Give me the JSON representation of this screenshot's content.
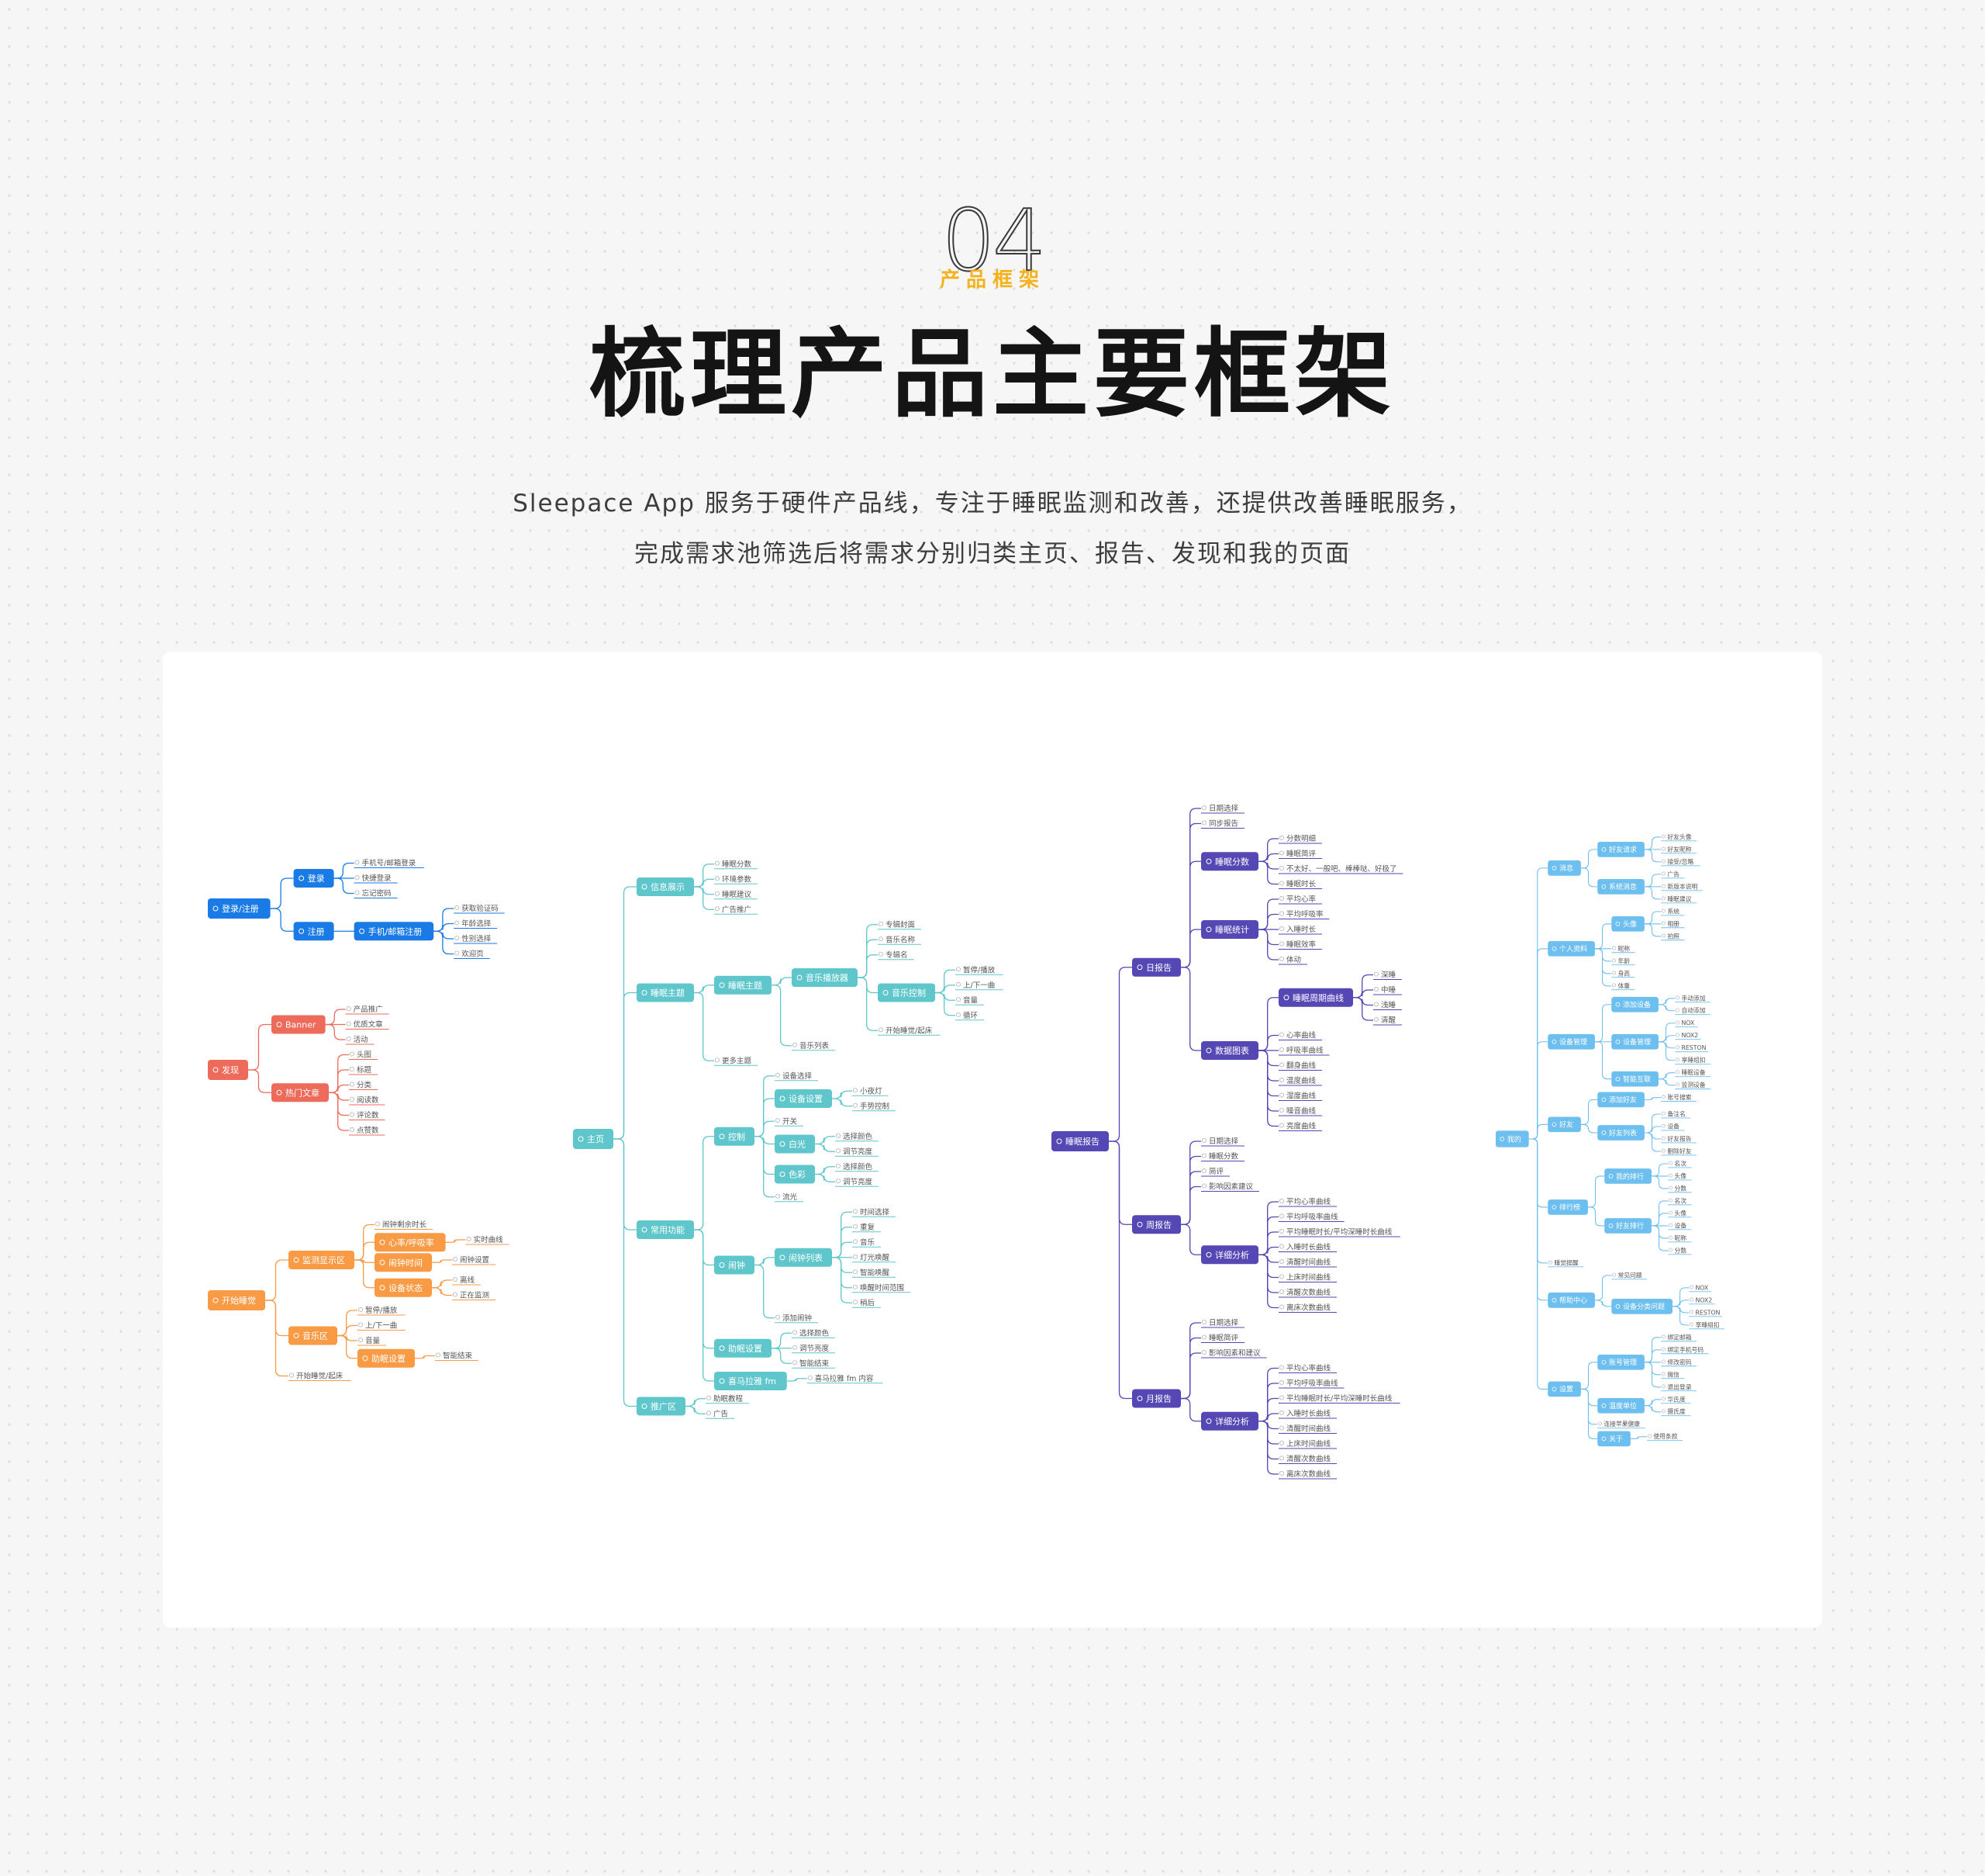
{
  "header": {
    "number": "04",
    "section_label": "产品框架",
    "title": "梳理产品主要框架",
    "description_line1": "Sleepace App 服务于硬件产品线，专注于睡眠监测和改善，还提供改善睡眠服务，",
    "description_line2": "完成需求池筛选后将需求分别归类主页、报告、发现和我的页面"
  },
  "colors": {
    "accent": "#f5b21e",
    "blue": "#1a7ae6",
    "red": "#ee6b5c",
    "orange": "#f99a45",
    "teal": "#5fc7cb",
    "purple": "#5547b4",
    "sky": "#6dbff0"
  },
  "mindmaps": [
    {
      "id": "login",
      "color": "#1a7ae6",
      "tree": {
        "t": "登录/注册",
        "c": [
          {
            "t": "登录",
            "c": [
              {
                "t": "手机号/邮箱登录"
              },
              {
                "t": "快捷登录"
              },
              {
                "t": "忘记密码"
              }
            ]
          },
          {
            "t": "注册",
            "c": [
              {
                "t": "手机/邮箱注册",
                "c": [
                  {
                    "t": "获取验证码"
                  },
                  {
                    "t": "年龄选择"
                  },
                  {
                    "t": "性别选择"
                  },
                  {
                    "t": "欢迎页"
                  }
                ]
              }
            ]
          }
        ]
      }
    },
    {
      "id": "discover",
      "color": "#ee6b5c",
      "tree": {
        "t": "发现",
        "c": [
          {
            "t": "Banner",
            "c": [
              {
                "t": "产品推广"
              },
              {
                "t": "优质文章"
              },
              {
                "t": "活动"
              }
            ]
          },
          {
            "t": "热门文章",
            "c": [
              {
                "t": "头图"
              },
              {
                "t": "标题"
              },
              {
                "t": "分类"
              },
              {
                "t": "阅读数"
              },
              {
                "t": "评论数"
              },
              {
                "t": "点赞数"
              }
            ]
          }
        ]
      }
    },
    {
      "id": "start-sleep",
      "color": "#f99a45",
      "tree": {
        "t": "开始睡觉",
        "c": [
          {
            "t": "监测显示区",
            "c": [
              {
                "t": "闹钟剩余时长"
              },
              {
                "t": "心率/呼吸率",
                "c": [
                  {
                    "t": "实时曲线"
                  }
                ]
              },
              {
                "t": "闹钟时间",
                "c": [
                  {
                    "t": "闹钟设置"
                  }
                ]
              },
              {
                "t": "设备状态",
                "c": [
                  {
                    "t": "离线"
                  },
                  {
                    "t": "正在监测"
                  }
                ]
              }
            ]
          },
          {
            "t": "音乐区",
            "c": [
              {
                "t": "暂停/播放"
              },
              {
                "t": "上/下一曲"
              },
              {
                "t": "音量"
              },
              {
                "t": "助眠设置",
                "c": [
                  {
                    "t": "智能结束"
                  }
                ]
              }
            ]
          },
          {
            "t": "开始睡觉/起床"
          }
        ]
      }
    },
    {
      "id": "home",
      "color": "#5fc7cb",
      "tree": {
        "t": "主页",
        "c": [
          {
            "t": "信息展示",
            "c": [
              {
                "t": "睡眠分数"
              },
              {
                "t": "环境参数"
              },
              {
                "t": "睡眠建议"
              },
              {
                "t": "广告推广"
              }
            ]
          },
          {
            "t": "睡眠主题",
            "c": [
              {
                "t": "睡眠主题",
                "c": [
                  {
                    "t": "音乐播放器",
                    "c": [
                      {
                        "t": "专辑封面"
                      },
                      {
                        "t": "音乐名称"
                      },
                      {
                        "t": "专辑名"
                      },
                      {
                        "t": "音乐控制",
                        "c": [
                          {
                            "t": "暂停/播放"
                          },
                          {
                            "t": "上/下一曲"
                          },
                          {
                            "t": "音量"
                          },
                          {
                            "t": "循环"
                          }
                        ]
                      },
                      {
                        "t": "开始睡觉/起床"
                      }
                    ]
                  },
                  {
                    "t": "音乐列表"
                  }
                ]
              },
              {
                "t": "更多主题"
              }
            ]
          },
          {
            "t": "常用功能",
            "c": [
              {
                "t": "控制",
                "c": [
                  {
                    "t": "设备选择"
                  },
                  {
                    "t": "设备设置",
                    "c": [
                      {
                        "t": "小夜灯"
                      },
                      {
                        "t": "手势控制"
                      }
                    ]
                  },
                  {
                    "t": "开关"
                  },
                  {
                    "t": "白光",
                    "c": [
                      {
                        "t": "选择颜色"
                      },
                      {
                        "t": "调节亮度"
                      }
                    ]
                  },
                  {
                    "t": "色彩",
                    "c": [
                      {
                        "t": "选择颜色"
                      },
                      {
                        "t": "调节亮度"
                      }
                    ]
                  },
                  {
                    "t": "流光"
                  }
                ]
              },
              {
                "t": "闹钟",
                "c": [
                  {
                    "t": "闹钟列表",
                    "c": [
                      {
                        "t": "时间选择"
                      },
                      {
                        "t": "重复"
                      },
                      {
                        "t": "音乐"
                      },
                      {
                        "t": "灯光唤醒"
                      },
                      {
                        "t": "智能唤醒"
                      },
                      {
                        "t": "唤醒时间范围"
                      },
                      {
                        "t": "稍后"
                      }
                    ]
                  },
                  {
                    "t": "添加闹钟"
                  }
                ]
              },
              {
                "t": "助眠设置",
                "c": [
                  {
                    "t": "选择颜色"
                  },
                  {
                    "t": "调节亮度"
                  },
                  {
                    "t": "智能结束"
                  }
                ]
              },
              {
                "t": "喜马拉雅 fm",
                "c": [
                  {
                    "t": "喜马拉雅 fm 内容"
                  }
                ]
              }
            ]
          },
          {
            "t": "推广区",
            "c": [
              {
                "t": "助眠教程"
              },
              {
                "t": "广告"
              }
            ]
          }
        ]
      }
    },
    {
      "id": "report",
      "color": "#5547b4",
      "tree": {
        "t": "睡眠报告",
        "c": [
          {
            "t": "日报告",
            "c": [
              {
                "t": "日期选择"
              },
              {
                "t": "同步报告"
              },
              {
                "t": "睡眠分数",
                "c": [
                  {
                    "t": "分数明细"
                  },
                  {
                    "t": "睡眠简评"
                  },
                  {
                    "t": "不太好、一般吧、棒棒哒、好极了"
                  },
                  {
                    "t": "睡眠时长"
                  }
                ]
              },
              {
                "t": "睡眠统计",
                "c": [
                  {
                    "t": "平均心率"
                  },
                  {
                    "t": "平均呼吸率"
                  },
                  {
                    "t": "入睡时长"
                  },
                  {
                    "t": "睡眠效率"
                  },
                  {
                    "t": "体动"
                  }
                ]
              },
              {
                "t": "数据图表",
                "c": [
                  {
                    "t": "睡眠周期曲线",
                    "c": [
                      {
                        "t": "深睡"
                      },
                      {
                        "t": "中睡"
                      },
                      {
                        "t": "浅睡"
                      },
                      {
                        "t": "清醒"
                      }
                    ]
                  },
                  {
                    "t": "心率曲线"
                  },
                  {
                    "t": "呼吸率曲线"
                  },
                  {
                    "t": "翻身曲线"
                  },
                  {
                    "t": "温度曲线"
                  },
                  {
                    "t": "湿度曲线"
                  },
                  {
                    "t": "噪音曲线"
                  },
                  {
                    "t": "亮度曲线"
                  }
                ]
              }
            ]
          },
          {
            "t": "周报告",
            "c": [
              {
                "t": "日期选择"
              },
              {
                "t": "睡眠分数"
              },
              {
                "t": "简评"
              },
              {
                "t": "影响因素建议"
              },
              {
                "t": "详细分析",
                "c": [
                  {
                    "t": "平均心率曲线"
                  },
                  {
                    "t": "平均呼吸率曲线"
                  },
                  {
                    "t": "平均睡眠时长/平均深睡时长曲线"
                  },
                  {
                    "t": "入睡时长曲线"
                  },
                  {
                    "t": "清醒时间曲线"
                  },
                  {
                    "t": "上床时间曲线"
                  },
                  {
                    "t": "清醒次数曲线"
                  },
                  {
                    "t": "离床次数曲线"
                  }
                ]
              }
            ]
          },
          {
            "t": "月报告",
            "c": [
              {
                "t": "日期选择"
              },
              {
                "t": "睡眠简评"
              },
              {
                "t": "影响因素和建议"
              },
              {
                "t": "详细分析",
                "c": [
                  {
                    "t": "平均心率曲线"
                  },
                  {
                    "t": "平均呼吸率曲线"
                  },
                  {
                    "t": "平均睡眠时长/平均深睡时长曲线"
                  },
                  {
                    "t": "入睡时长曲线"
                  },
                  {
                    "t": "清醒时间曲线"
                  },
                  {
                    "t": "上床时间曲线"
                  },
                  {
                    "t": "清醒次数曲线"
                  },
                  {
                    "t": "离床次数曲线"
                  }
                ]
              }
            ]
          }
        ]
      }
    },
    {
      "id": "me",
      "color": "#6dbff0",
      "tree": {
        "t": "我的",
        "c": [
          {
            "t": "消息",
            "c": [
              {
                "t": "好友请求",
                "c": [
                  {
                    "t": "好友头像"
                  },
                  {
                    "t": "好友昵称"
                  },
                  {
                    "t": "接受/忽略"
                  }
                ]
              },
              {
                "t": "系统消息",
                "c": [
                  {
                    "t": "广告"
                  },
                  {
                    "t": "新版本说明"
                  },
                  {
                    "t": "睡眠建议"
                  }
                ]
              }
            ]
          },
          {
            "t": "个人资料",
            "c": [
              {
                "t": "头像",
                "c": [
                  {
                    "t": "系统"
                  },
                  {
                    "t": "相册"
                  },
                  {
                    "t": "拍照"
                  }
                ]
              },
              {
                "t": "昵称"
              },
              {
                "t": "年龄"
              },
              {
                "t": "身高"
              },
              {
                "t": "体重"
              }
            ]
          },
          {
            "t": "设备管理",
            "c": [
              {
                "t": "添加设备",
                "c": [
                  {
                    "t": "手动添加"
                  },
                  {
                    "t": "自动添加"
                  }
                ]
              },
              {
                "t": "设备管理",
                "c": [
                  {
                    "t": "NOX"
                  },
                  {
                    "t": "NOX2"
                  },
                  {
                    "t": "RESTON"
                  },
                  {
                    "t": "享睡组扣"
                  }
                ]
              },
              {
                "t": "智能互联",
                "c": [
                  {
                    "t": "睡眠设备"
                  },
                  {
                    "t": "监测设备"
                  }
                ]
              }
            ]
          },
          {
            "t": "好友",
            "c": [
              {
                "t": "添加好友",
                "c": [
                  {
                    "t": "账号搜索"
                  }
                ]
              },
              {
                "t": "好友列表",
                "c": [
                  {
                    "t": "备注名"
                  },
                  {
                    "t": "设备"
                  },
                  {
                    "t": "好友报告"
                  },
                  {
                    "t": "删除好友"
                  }
                ]
              }
            ]
          },
          {
            "t": "排行榜",
            "c": [
              {
                "t": "我的排行",
                "c": [
                  {
                    "t": "名次"
                  },
                  {
                    "t": "头像"
                  },
                  {
                    "t": "分数"
                  }
                ]
              },
              {
                "t": "好友排行",
                "c": [
                  {
                    "t": "名次"
                  },
                  {
                    "t": "头像"
                  },
                  {
                    "t": "设备"
                  },
                  {
                    "t": "昵称"
                  },
                  {
                    "t": "分数"
                  }
                ]
              }
            ]
          },
          {
            "t": "睡觉提醒"
          },
          {
            "t": "帮助中心",
            "c": [
              {
                "t": "常见问题"
              },
              {
                "t": "设备分类问题",
                "c": [
                  {
                    "t": "NOX"
                  },
                  {
                    "t": "NOX2"
                  },
                  {
                    "t": "RESTON"
                  },
                  {
                    "t": "享睡组扣"
                  }
                ]
              }
            ]
          },
          {
            "t": "设置",
            "c": [
              {
                "t": "账号管理",
                "c": [
                  {
                    "t": "绑定邮箱"
                  },
                  {
                    "t": "绑定手机号码"
                  },
                  {
                    "t": "修改密码"
                  },
                  {
                    "t": "微信"
                  },
                  {
                    "t": "退出登录"
                  }
                ]
              },
              {
                "t": "温度单位",
                "c": [
                  {
                    "t": "华氏度"
                  },
                  {
                    "t": "摄氏度"
                  }
                ]
              },
              {
                "t": "连接苹果健康"
              },
              {
                "t": "关于",
                "c": [
                  {
                    "t": "使用条款"
                  }
                ]
              }
            ]
          }
        ]
      }
    }
  ]
}
